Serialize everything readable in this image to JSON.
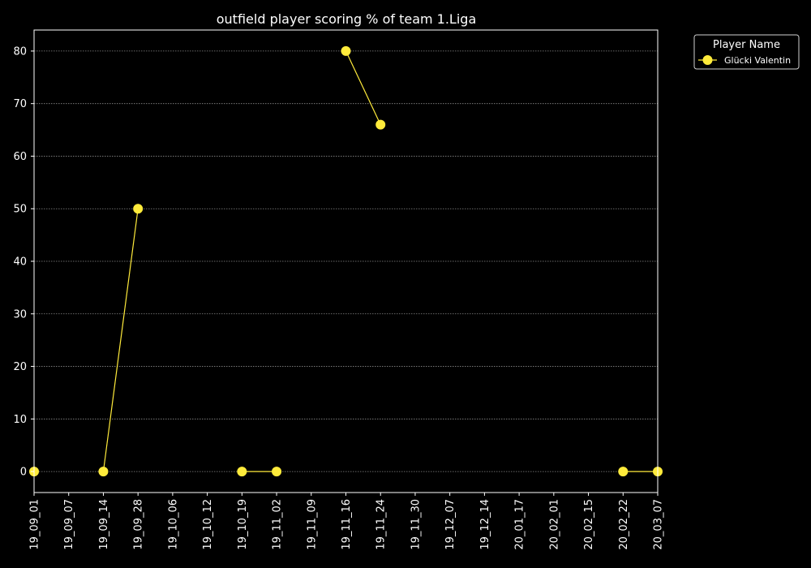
{
  "chart_data": {
    "type": "line",
    "title": "outfield player scoring % of team 1.Liga",
    "xlabel": "",
    "ylabel": "",
    "x_ticks": [
      "19_09_01",
      "19_09_07",
      "19_09_14",
      "19_09_28",
      "19_10_06",
      "19_10_12",
      "19_10_19",
      "19_11_02",
      "19_11_09",
      "19_11_16",
      "19_11_24",
      "19_11_30",
      "19_12_07",
      "19_12_14",
      "20_01_17",
      "20_02_01",
      "20_02_15",
      "20_02_22",
      "20_03_07"
    ],
    "y_ticks": [
      0,
      10,
      20,
      30,
      40,
      50,
      60,
      70,
      80
    ],
    "ylim": [
      -4,
      84
    ],
    "grid": true,
    "legend": {
      "title": "Player Name",
      "placement": "outside-top-right"
    },
    "series": [
      {
        "name": "Glücki Valentin",
        "color": "#ffeb3b",
        "segments": [
          [
            {
              "x": "19_09_01",
              "y": 0
            }
          ],
          [
            {
              "x": "19_09_14",
              "y": 0
            },
            {
              "x": "19_09_28",
              "y": 50
            }
          ],
          [
            {
              "x": "19_10_19",
              "y": 0
            },
            {
              "x": "19_11_02",
              "y": 0
            }
          ],
          [
            {
              "x": "19_11_16",
              "y": 80
            },
            {
              "x": "19_11_24",
              "y": 66
            }
          ],
          [
            {
              "x": "20_02_22",
              "y": 0
            },
            {
              "x": "20_03_07",
              "y": 0
            }
          ]
        ]
      }
    ]
  }
}
